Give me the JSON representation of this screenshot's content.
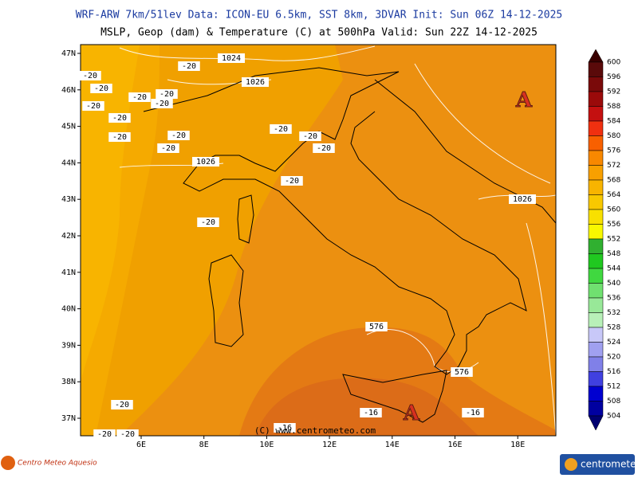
{
  "header": {
    "line1": "WRF-ARW 7km/51lev  Data: ICON-EU 6.5km, SST 8km, 3DVAR  Init: Sun 06Z 14-12-2025",
    "line2": "MSLP, Geop (dam) & Temperature (C) at 500hPa  Valid: Sun 22Z 14-12-2025"
  },
  "map": {
    "lat_labels": [
      "47N",
      "46N",
      "45N",
      "44N",
      "43N",
      "42N",
      "41N",
      "40N",
      "39N",
      "38N",
      "37N"
    ],
    "lon_labels": [
      "6E",
      "8E",
      "10E",
      "12E",
      "14E",
      "16E",
      "18E"
    ],
    "contour_labels": [
      "-20",
      "-20",
      "-20",
      "-20",
      "-20",
      "-20",
      "-20",
      "-20",
      "-20",
      "-20",
      "-20",
      "-20",
      "-20",
      "-20",
      "-20",
      "-20",
      "-20",
      "-20",
      "-20",
      "1024",
      "1026",
      "1026",
      "1026",
      "576",
      "576",
      "-16",
      "-16",
      "-16"
    ],
    "high_markers": [
      "A",
      "A"
    ],
    "copyright": "(C) www.centrometeo.com"
  },
  "colorbar": {
    "levels": [
      600,
      596,
      592,
      588,
      584,
      580,
      576,
      572,
      568,
      564,
      560,
      556,
      552,
      548,
      544,
      540,
      536,
      532,
      528,
      524,
      520,
      516,
      512,
      508,
      504
    ],
    "colors": [
      "#3a0000",
      "#5a0a0a",
      "#7a0a0a",
      "#9a0a0a",
      "#c41010",
      "#f03010",
      "#f86000",
      "#f88800",
      "#f8a000",
      "#f8b400",
      "#f8c800",
      "#f8e000",
      "#f8f800",
      "#30b030",
      "#20c820",
      "#40d840",
      "#70e070",
      "#98e898",
      "#b8f0b8",
      "#c8c8f8",
      "#a0a0f0",
      "#8080e8",
      "#4040e0",
      "#0000d0",
      "#0000a0",
      "#000070"
    ]
  },
  "footer": {
    "left_logo": "Centro Meteo Aquesio",
    "right_logo": "centrometeo"
  }
}
